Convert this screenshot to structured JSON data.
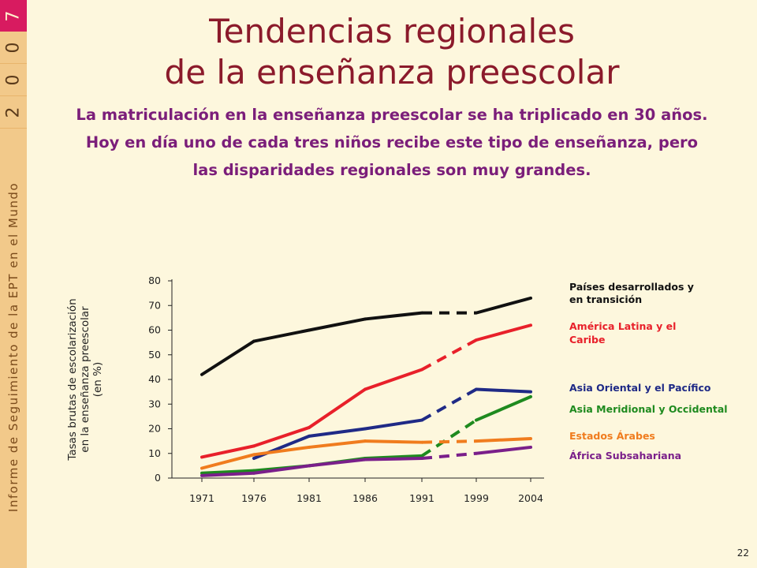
{
  "sidebar": {
    "year_digits": [
      "7",
      "0",
      "0",
      "2"
    ],
    "report_label": "Informe de Seguimiento de la EPT en el Mundo"
  },
  "slide": {
    "title_line1": "Tendencias regionales",
    "title_line2": "de la enseñanza  preescolar",
    "subtitle_line1": "La matriculación en la enseñanza preescolar se ha triplicado en 30 años.",
    "subtitle_line2": "Hoy en día uno de cada tres niños recibe este tipo de enseñanza, pero",
    "subtitle_line3": "las disparidades regionales son muy grandes.",
    "page_number": "22"
  },
  "chart_data": {
    "type": "line",
    "ylabel_lines": [
      "Tasas brutas de escolarización",
      "en la enseñanza  preescolar",
      "(en %)"
    ],
    "categories": [
      "1971",
      "1976",
      "1981",
      "1986",
      "1991",
      "1999",
      "2004"
    ],
    "ylim": [
      0,
      80
    ],
    "yticks": [
      "0",
      "10",
      "20",
      "30",
      "40",
      "50",
      "60",
      "70",
      "80"
    ],
    "dashed_segment": [
      "1991",
      "1999"
    ],
    "series": [
      {
        "name": "Países desarrollados y en transición",
        "label_lines": [
          "Países desarrollados y",
          "en transición"
        ],
        "color": "#111111",
        "values": [
          42,
          55.5,
          60,
          64.5,
          67,
          67,
          73
        ]
      },
      {
        "name": "América Latina y el Caribe",
        "label_lines": [
          "América Latina y el",
          "Caribe"
        ],
        "color": "#e8202a",
        "values": [
          8.5,
          13,
          20.5,
          36,
          44,
          56,
          62
        ]
      },
      {
        "name": "Asia Oriental y el Pacífico",
        "label_lines": [
          "Asia Oriental y el Pacífico"
        ],
        "color": "#1f2a86",
        "values": [
          null,
          8,
          17,
          20,
          23.5,
          36,
          35
        ]
      },
      {
        "name": "Asia Meridional y Occidental",
        "label_lines": [
          "Asia Meridional y Occidental"
        ],
        "color": "#1e8a1e",
        "values": [
          2,
          3,
          5,
          8,
          9,
          23.5,
          33
        ]
      },
      {
        "name": "Estados Árabes",
        "label_lines": [
          "Estados Árabes"
        ],
        "color": "#f07c1e",
        "values": [
          4,
          9.5,
          12.5,
          15,
          14.5,
          15,
          16
        ]
      },
      {
        "name": "África Subsahariana",
        "label_lines": [
          "África Subsahariana"
        ],
        "color": "#7a1f8a",
        "values": [
          1,
          2,
          5,
          7.5,
          8,
          10,
          12.5
        ]
      }
    ]
  }
}
